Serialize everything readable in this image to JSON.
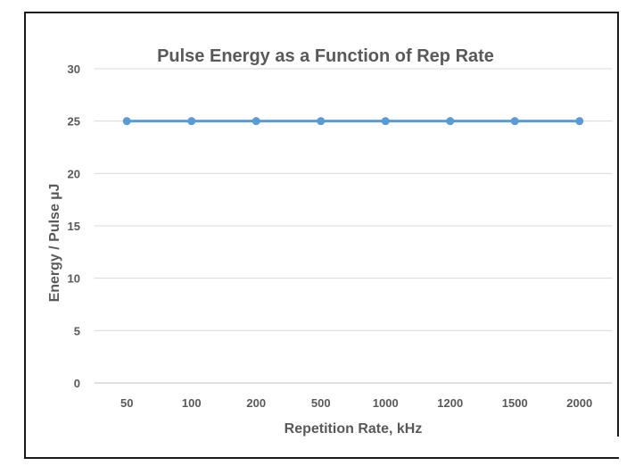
{
  "chart_data": {
    "type": "line",
    "title": "Pulse Energy as a Function of Rep Rate",
    "xlabel": "Repetition Rate, kHz",
    "ylabel": "Energy / Pulse µJ",
    "categories": [
      "50",
      "100",
      "200",
      "500",
      "1000",
      "1200",
      "1500",
      "2000"
    ],
    "series": [
      {
        "values": [
          25,
          25,
          25,
          25,
          25,
          25,
          25,
          25
        ]
      }
    ],
    "ylim": [
      0,
      30
    ],
    "yticks": [
      0,
      5,
      10,
      15,
      20,
      25,
      30
    ],
    "grid": true,
    "legend": "none",
    "colors": {
      "series": "#5b9bd5",
      "grid": "#d9d9d9",
      "axis": "#bfbfbf",
      "text": "#595959"
    }
  }
}
